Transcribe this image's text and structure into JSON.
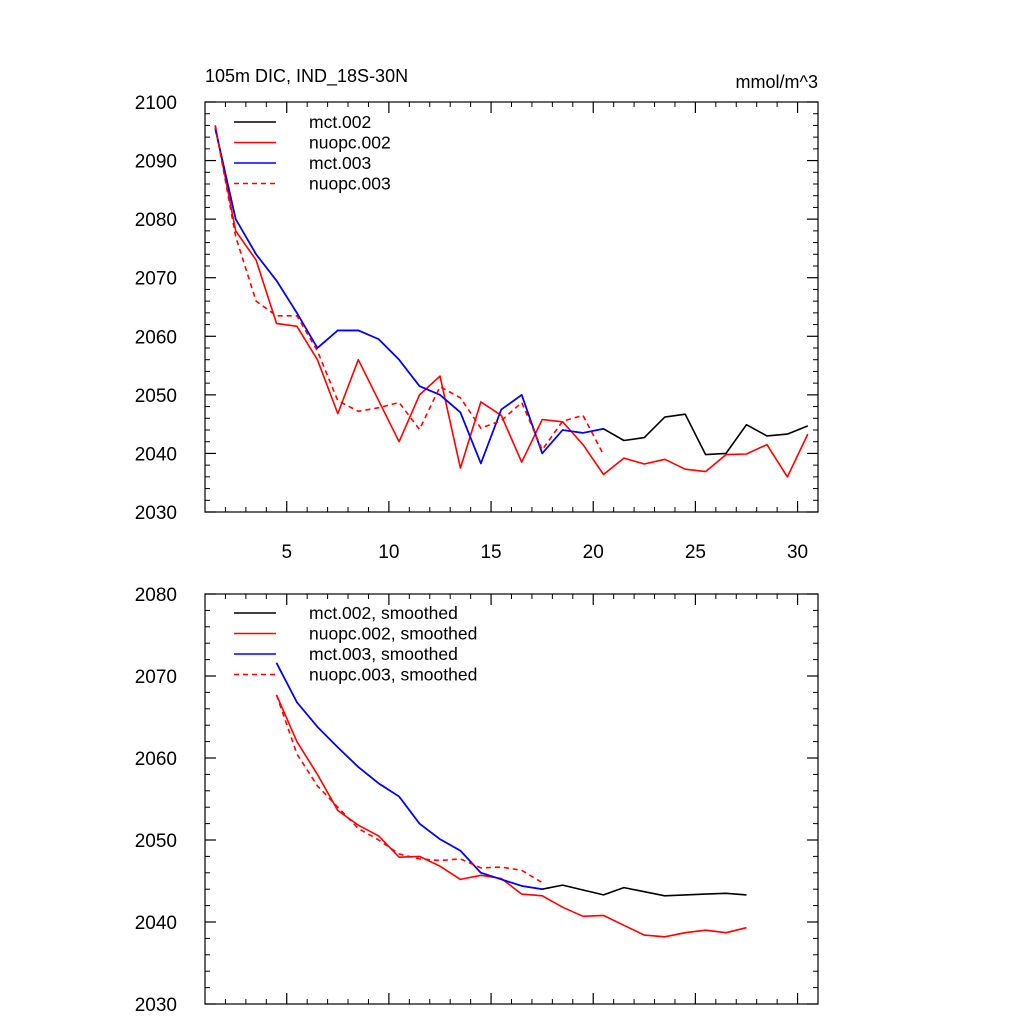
{
  "chart_data": [
    {
      "type": "line",
      "title": "105m DIC, IND_18S-30N",
      "units": "mmol/m^3",
      "xlim": [
        1,
        31
      ],
      "ylim": [
        2030,
        2100
      ],
      "xticks": [
        5,
        10,
        15,
        20,
        25,
        30
      ],
      "xtick_labels": [
        "5",
        "10",
        "15",
        "20",
        "25",
        "30"
      ],
      "yticks": [
        2030,
        2040,
        2050,
        2060,
        2070,
        2080,
        2090,
        2100
      ],
      "ytick_labels": [
        "2030",
        "2040",
        "2050",
        "2060",
        "2070",
        "2080",
        "2090",
        "2100"
      ],
      "legend_position": "top-left",
      "series": [
        {
          "name": "mct.002",
          "color": "#000000",
          "dash": "solid",
          "x": [
            1.5,
            2.5,
            3.5,
            4.5,
            5.5,
            6.5,
            7.5,
            8.5,
            9.5,
            10.5,
            11.5,
            12.5,
            13.5,
            14.5,
            15.5,
            16.5,
            17.5,
            18.5,
            19.5,
            20.5,
            21.5,
            22.5,
            23.5,
            24.5,
            25.5,
            26.5,
            27.5,
            28.5,
            29.5,
            30.5
          ],
          "y": [
            2095.5,
            2080.0,
            2074.0,
            2069.5,
            2064.0,
            2058.0,
            2061.0,
            2061.0,
            2059.5,
            2056.0,
            2051.5,
            2050.0,
            2047.0,
            2038.3,
            2047.5,
            2050.0,
            2040.0,
            2044.0,
            2043.5,
            2044.2,
            2042.2,
            2042.7,
            2046.2,
            2046.7,
            2039.8,
            2040.0,
            2044.9,
            2043.0,
            2043.3,
            2044.7
          ]
        },
        {
          "name": "nuopc.002",
          "color": "#ff0000",
          "dash": "solid",
          "x": [
            1.5,
            2.5,
            3.5,
            4.5,
            5.5,
            6.5,
            7.5,
            8.5,
            9.5,
            10.5,
            11.5,
            12.5,
            13.5,
            14.5,
            15.5,
            16.5,
            17.5,
            18.5,
            19.5,
            20.5,
            21.5,
            22.5,
            23.5,
            24.5,
            25.5,
            26.5,
            27.5,
            28.5,
            29.5,
            30.5
          ],
          "y": [
            2096.0,
            2078.0,
            2073.0,
            2062.2,
            2061.7,
            2056.0,
            2046.8,
            2056.0,
            2049.0,
            2042.0,
            2050.0,
            2053.2,
            2037.5,
            2048.8,
            2046.5,
            2038.5,
            2045.8,
            2045.4,
            2041.5,
            2036.4,
            2039.2,
            2038.2,
            2039.0,
            2037.3,
            2036.9,
            2039.8,
            2039.9,
            2041.5,
            2036.0,
            2043.3
          ]
        },
        {
          "name": "mct.003",
          "color": "#0000ff",
          "dash": "solid",
          "x": [
            1.5,
            2.5,
            3.5,
            4.5,
            5.5,
            6.5,
            7.5,
            8.5,
            9.5,
            10.5,
            11.5,
            12.5,
            13.5,
            14.5,
            15.5,
            16.5,
            17.5,
            18.5,
            19.5,
            20.5
          ],
          "y": [
            2095.5,
            2080.0,
            2074.0,
            2069.5,
            2064.0,
            2058.0,
            2061.0,
            2061.0,
            2059.5,
            2056.0,
            2051.5,
            2050.0,
            2047.0,
            2038.3,
            2047.5,
            2050.0,
            2040.0,
            2044.0,
            2043.5,
            2044.2
          ]
        },
        {
          "name": "nuopc.003",
          "color": "#ff0000",
          "dash": "dashed",
          "x": [
            1.5,
            2.5,
            3.5,
            4.5,
            5.5,
            6.5,
            7.5,
            8.5,
            9.5,
            10.5,
            11.5,
            12.5,
            13.5,
            14.5,
            15.5,
            16.5,
            17.5,
            18.5,
            19.5,
            20.5
          ],
          "y": [
            2096.0,
            2077.0,
            2066.0,
            2063.5,
            2063.5,
            2057.5,
            2049.0,
            2047.2,
            2047.8,
            2048.7,
            2044.1,
            2051.4,
            2049.5,
            2044.3,
            2045.6,
            2048.7,
            2040.6,
            2045.5,
            2046.5,
            2039.8
          ]
        }
      ]
    },
    {
      "type": "line",
      "xlim": [
        1,
        31
      ],
      "ylim": [
        2030,
        2080
      ],
      "xticks": [
        5,
        10,
        15,
        20,
        25,
        30
      ],
      "yticks": [
        2030,
        2040,
        2050,
        2060,
        2070,
        2080
      ],
      "ytick_labels": [
        "2030",
        "2040",
        "2050",
        "2060",
        "2070",
        "2080"
      ],
      "legend_position": "top-left",
      "series": [
        {
          "name": "mct.002, smoothed",
          "color": "#000000",
          "dash": "solid",
          "x": [
            4.5,
            5.5,
            6.5,
            7.5,
            8.5,
            9.5,
            10.5,
            11.5,
            12.5,
            13.5,
            14.5,
            15.5,
            16.5,
            17.5,
            18.5,
            19.5,
            20.5,
            21.5,
            22.5,
            23.5,
            24.5,
            25.5,
            26.5,
            27.5
          ],
          "y": [
            2071.6,
            2066.8,
            2063.8,
            2061.3,
            2058.9,
            2056.9,
            2055.3,
            2052.0,
            2050.1,
            2048.7,
            2046.0,
            2045.2,
            2044.4,
            2044.0,
            2044.5,
            2043.9,
            2043.3,
            2044.2,
            2043.7,
            2043.2,
            2043.3,
            2043.4,
            2043.5,
            2043.3
          ]
        },
        {
          "name": "nuopc.002, smoothed",
          "color": "#ff0000",
          "dash": "solid",
          "x": [
            4.5,
            5.5,
            6.5,
            7.5,
            8.5,
            9.5,
            10.5,
            11.5,
            12.5,
            13.5,
            14.5,
            15.5,
            16.5,
            17.5,
            18.5,
            19.5,
            20.5,
            21.5,
            22.5,
            23.5,
            24.5,
            25.5,
            26.5,
            27.5
          ],
          "y": [
            2067.7,
            2062.0,
            2058.0,
            2053.6,
            2051.8,
            2050.5,
            2047.9,
            2048.0,
            2046.8,
            2045.2,
            2045.7,
            2045.3,
            2043.4,
            2043.2,
            2041.8,
            2040.7,
            2040.8,
            2039.6,
            2038.4,
            2038.2,
            2038.7,
            2039.0,
            2038.7,
            2039.3
          ]
        },
        {
          "name": "mct.003, smoothed",
          "color": "#0000ff",
          "dash": "solid",
          "x": [
            4.5,
            5.5,
            6.5,
            7.5,
            8.5,
            9.5,
            10.5,
            11.5,
            12.5,
            13.5,
            14.5,
            15.5,
            16.5,
            17.5
          ],
          "y": [
            2071.6,
            2066.8,
            2063.8,
            2061.3,
            2058.9,
            2056.9,
            2055.3,
            2052.0,
            2050.1,
            2048.7,
            2046.0,
            2045.2,
            2044.4,
            2044.0
          ]
        },
        {
          "name": "nuopc.003, smoothed",
          "color": "#ff0000",
          "dash": "dashed",
          "x": [
            4.5,
            5.5,
            6.5,
            7.5,
            8.5,
            9.5,
            10.5,
            11.5,
            12.5,
            13.5,
            14.5,
            15.5,
            16.5,
            17.5
          ],
          "y": [
            2067.7,
            2060.5,
            2056.6,
            2054.0,
            2051.4,
            2050.0,
            2048.3,
            2047.7,
            2047.5,
            2047.7,
            2046.6,
            2046.7,
            2046.3,
            2044.8
          ]
        }
      ]
    }
  ]
}
